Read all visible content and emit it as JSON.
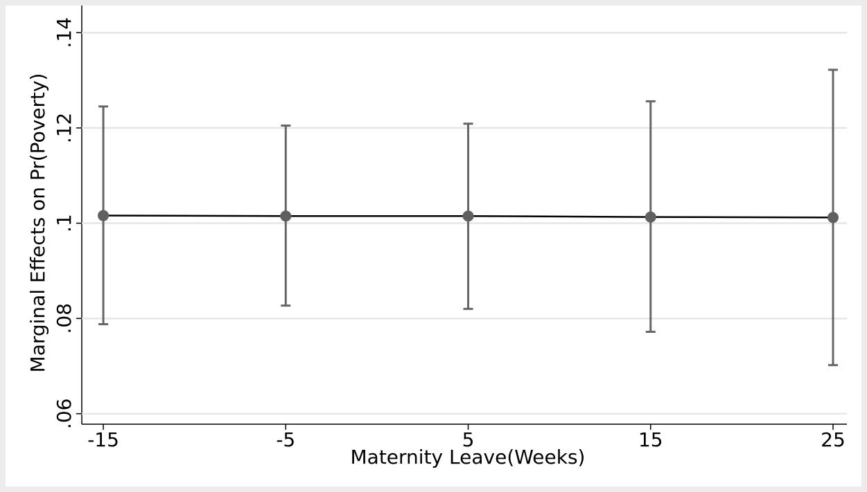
{
  "chart_data": {
    "type": "line",
    "x_label": "Maternity Leave(Weeks)",
    "y_label": "Marginal Effects on Pr(Poverty)",
    "x": [
      -15,
      -5,
      5,
      15,
      25
    ],
    "values": [
      0.1016,
      0.1015,
      0.1015,
      0.1013,
      0.1012
    ],
    "lower": [
      0.0788,
      0.0827,
      0.082,
      0.0772,
      0.0702
    ],
    "upper": [
      0.1245,
      0.1205,
      0.1209,
      0.1256,
      0.1322
    ],
    "line_color": "#000000",
    "point_color": "#606060",
    "error_color": "#666666",
    "xlim": [
      -16.18,
      25.76
    ],
    "xticks": [
      -15,
      -5,
      5,
      15,
      25
    ],
    "ylim": [
      0.0578,
      0.1457
    ],
    "yticks": [
      {
        "value": 0.06,
        "label": ".06"
      },
      {
        "value": 0.08,
        "label": ".08"
      },
      {
        "value": 0.1,
        "label": ".1"
      },
      {
        "value": 0.12,
        "label": ".12"
      },
      {
        "value": 0.14,
        "label": ".14"
      }
    ],
    "grid": true
  }
}
